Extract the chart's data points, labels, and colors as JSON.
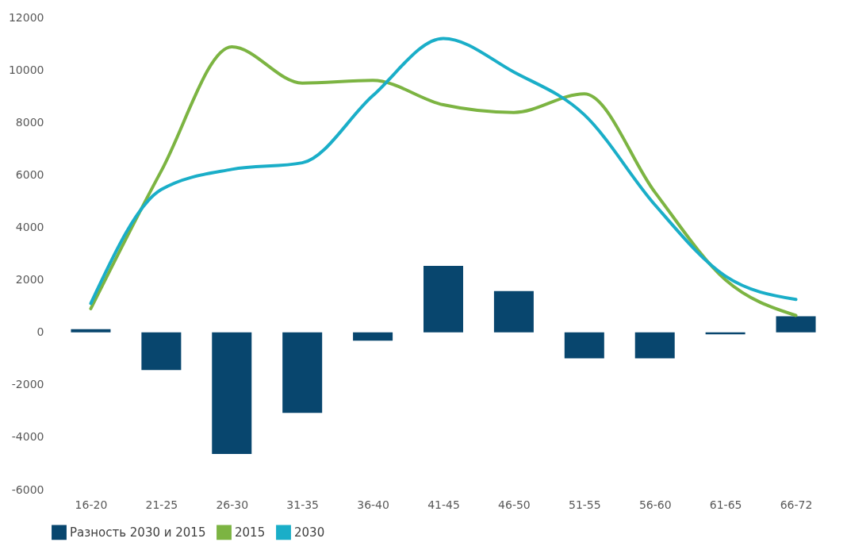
{
  "chart_data": {
    "type": "bar",
    "categories": [
      "16-20",
      "21-25",
      "26-30",
      "31-35",
      "36-40",
      "41-45",
      "46-50",
      "51-55",
      "56-60",
      "61-65",
      "66-72"
    ],
    "series": [
      {
        "name": "Разность 2030 и 2015",
        "color": "#08466e",
        "values": [
          120,
          -1440,
          -4640,
          -3070,
          -320,
          2530,
          1570,
          -990,
          -990,
          -80,
          610
        ]
      },
      {
        "name": "2015",
        "type": "line",
        "color": "#7cb442",
        "values": [
          900,
          6150,
          10880,
          9500,
          9600,
          8670,
          8380,
          9090,
          5340,
          2000,
          640
        ]
      },
      {
        "name": "2030",
        "type": "line",
        "color": "#1aaec8",
        "values": [
          1100,
          5440,
          6210,
          6460,
          9020,
          11200,
          9920,
          8290,
          4860,
          2140,
          1250
        ]
      }
    ],
    "ylim": [
      -6000,
      12000
    ],
    "yticks": [
      -6000,
      -4000,
      -2000,
      0,
      2000,
      4000,
      6000,
      8000,
      10000,
      12000
    ],
    "legend": "bottom",
    "grid": false
  }
}
